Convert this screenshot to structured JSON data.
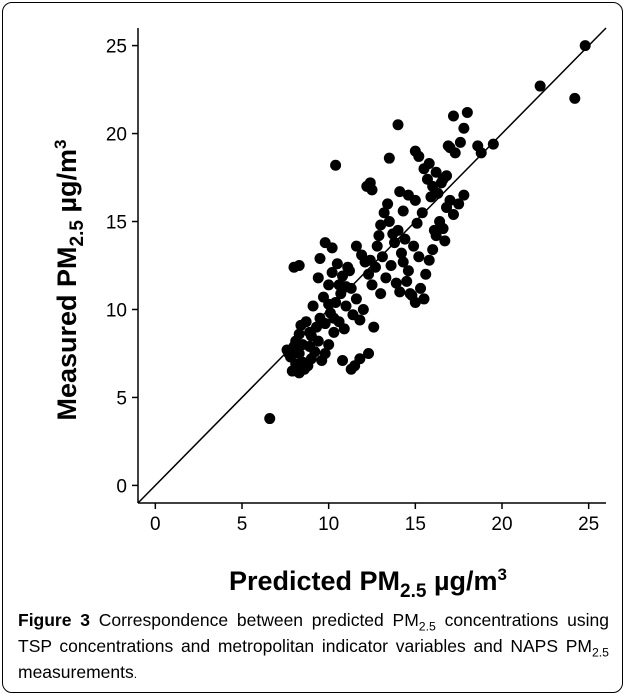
{
  "chart_data": {
    "type": "scatter",
    "xlabel": "Predicted PM",
    "xlabel_sub": "2.5",
    "xlabel_unit": " µg/m",
    "xlabel_sup": "3",
    "ylabel": "Measured PM",
    "ylabel_sub": "2.5",
    "ylabel_unit": " µg/m",
    "ylabel_sup": "3",
    "xlim": [
      -1,
      26
    ],
    "ylim": [
      -1,
      26
    ],
    "x_ticks": [
      "0",
      "5",
      "10",
      "15",
      "20",
      "25"
    ],
    "y_ticks": [
      "0",
      "5",
      "10",
      "15",
      "20",
      "25"
    ],
    "grid": false,
    "reference_line": "y = x",
    "points": [
      [
        6.6,
        3.8
      ],
      [
        7.6,
        7.7
      ],
      [
        7.8,
        7.3
      ],
      [
        7.9,
        6.5
      ],
      [
        8.1,
        6.9
      ],
      [
        8.3,
        6.4
      ],
      [
        8.0,
        7.9
      ],
      [
        8.3,
        7.5
      ],
      [
        8.5,
        7.0
      ],
      [
        8.6,
        6.6
      ],
      [
        8.8,
        6.8
      ],
      [
        9.0,
        7.2
      ],
      [
        8.5,
        8.0
      ],
      [
        8.3,
        8.6
      ],
      [
        8.9,
        7.9
      ],
      [
        9.2,
        7.6
      ],
      [
        9.4,
        8.2
      ],
      [
        9.6,
        7.1
      ],
      [
        9.8,
        7.5
      ],
      [
        10.0,
        8.0
      ],
      [
        9.0,
        8.5
      ],
      [
        9.3,
        9.0
      ],
      [
        9.5,
        9.5
      ],
      [
        9.8,
        9.2
      ],
      [
        10.1,
        9.8
      ],
      [
        10.3,
        8.7
      ],
      [
        10.6,
        9.3
      ],
      [
        10.9,
        8.9
      ],
      [
        10.4,
        10.4
      ],
      [
        10.7,
        10.9
      ],
      [
        11.0,
        10.2
      ],
      [
        10.0,
        11.4
      ],
      [
        10.2,
        12.1
      ],
      [
        10.5,
        12.6
      ],
      [
        10.8,
        11.9
      ],
      [
        11.1,
        12.4
      ],
      [
        11.3,
        11.2
      ],
      [
        11.6,
        10.6
      ],
      [
        11.4,
        9.7
      ],
      [
        11.8,
        9.4
      ],
      [
        12.0,
        10.0
      ],
      [
        12.1,
        12.7
      ],
      [
        11.9,
        13.1
      ],
      [
        11.6,
        13.6
      ],
      [
        12.3,
        12.0
      ],
      [
        12.5,
        11.4
      ],
      [
        12.6,
        9.0
      ],
      [
        12.3,
        7.5
      ],
      [
        11.8,
        7.2
      ],
      [
        11.5,
        6.8
      ],
      [
        11.3,
        6.6
      ],
      [
        10.8,
        7.1
      ],
      [
        10.2,
        13.5
      ],
      [
        9.8,
        13.8
      ],
      [
        9.5,
        12.9
      ],
      [
        9.4,
        11.8
      ],
      [
        9.7,
        10.7
      ],
      [
        10.0,
        10.3
      ],
      [
        8.0,
        12.4
      ],
      [
        8.3,
        12.5
      ],
      [
        10.4,
        18.2
      ],
      [
        12.5,
        16.8
      ],
      [
        12.4,
        17.2
      ],
      [
        13.0,
        14.8
      ],
      [
        13.2,
        15.5
      ],
      [
        13.4,
        16.0
      ],
      [
        13.5,
        15.0
      ],
      [
        13.7,
        14.3
      ],
      [
        13.8,
        13.8
      ],
      [
        14.0,
        14.5
      ],
      [
        14.2,
        13.2
      ],
      [
        14.3,
        12.7
      ],
      [
        14.5,
        11.6
      ],
      [
        14.6,
        12.2
      ],
      [
        14.8,
        10.8
      ],
      [
        15.0,
        10.4
      ],
      [
        14.7,
        10.9
      ],
      [
        15.3,
        11.2
      ],
      [
        15.5,
        10.6
      ],
      [
        15.6,
        12.0
      ],
      [
        15.8,
        12.8
      ],
      [
        16.0,
        13.4
      ],
      [
        16.2,
        14.2
      ],
      [
        16.4,
        15.0
      ],
      [
        16.6,
        14.6
      ],
      [
        16.8,
        15.8
      ],
      [
        17.0,
        16.2
      ],
      [
        17.2,
        15.4
      ],
      [
        17.5,
        16.0
      ],
      [
        17.8,
        16.5
      ],
      [
        16.0,
        17.0
      ],
      [
        15.7,
        17.4
      ],
      [
        15.5,
        18.0
      ],
      [
        15.2,
        18.7
      ],
      [
        15.0,
        19.0
      ],
      [
        15.8,
        18.3
      ],
      [
        16.2,
        17.8
      ],
      [
        16.5,
        17.2
      ],
      [
        16.8,
        17.6
      ],
      [
        17.0,
        19.2
      ],
      [
        17.3,
        18.9
      ],
      [
        17.6,
        19.5
      ],
      [
        17.8,
        20.3
      ],
      [
        18.0,
        21.2
      ],
      [
        17.2,
        21.0
      ],
      [
        16.9,
        19.3
      ],
      [
        18.6,
        19.3
      ],
      [
        18.8,
        18.9
      ],
      [
        19.5,
        19.4
      ],
      [
        14.0,
        20.5
      ],
      [
        13.5,
        18.6
      ],
      [
        12.2,
        17.0
      ],
      [
        12.8,
        13.6
      ],
      [
        13.1,
        13.0
      ],
      [
        12.7,
        12.4
      ],
      [
        13.3,
        11.8
      ],
      [
        13.6,
        12.5
      ],
      [
        13.9,
        11.5
      ],
      [
        14.1,
        11.0
      ],
      [
        13.0,
        10.9
      ],
      [
        12.4,
        12.8
      ],
      [
        12.9,
        14.2
      ],
      [
        14.4,
        14.0
      ],
      [
        14.9,
        13.6
      ],
      [
        15.1,
        14.9
      ],
      [
        15.4,
        15.5
      ],
      [
        15.9,
        16.4
      ],
      [
        16.3,
        16.6
      ],
      [
        16.6,
        17.4
      ],
      [
        14.6,
        16.5
      ],
      [
        14.3,
        15.6
      ],
      [
        15.0,
        16.2
      ],
      [
        14.1,
        16.7
      ],
      [
        16.1,
        14.5
      ],
      [
        16.7,
        13.9
      ],
      [
        15.2,
        13.0
      ],
      [
        11.0,
        11.3
      ],
      [
        11.2,
        12.2
      ],
      [
        10.6,
        11.4
      ],
      [
        10.3,
        9.5
      ],
      [
        9.1,
        10.2
      ],
      [
        8.7,
        9.3
      ],
      [
        8.4,
        9.1
      ],
      [
        8.1,
        8.2
      ],
      [
        7.7,
        7.5
      ],
      [
        8.9,
        8.7
      ],
      [
        22.2,
        22.7
      ],
      [
        24.2,
        22.0
      ],
      [
        24.8,
        25.0
      ]
    ]
  },
  "caption": {
    "figure_label": "Figure 3",
    "text_1": " Correspondence between predicted PM",
    "sub_1": "2.5",
    "text_2": " concentrations using TSP concentrations and metropolitan indicator variables and NAPS PM",
    "sub_2": "2.5",
    "text_3": " measurements",
    "end": "."
  }
}
